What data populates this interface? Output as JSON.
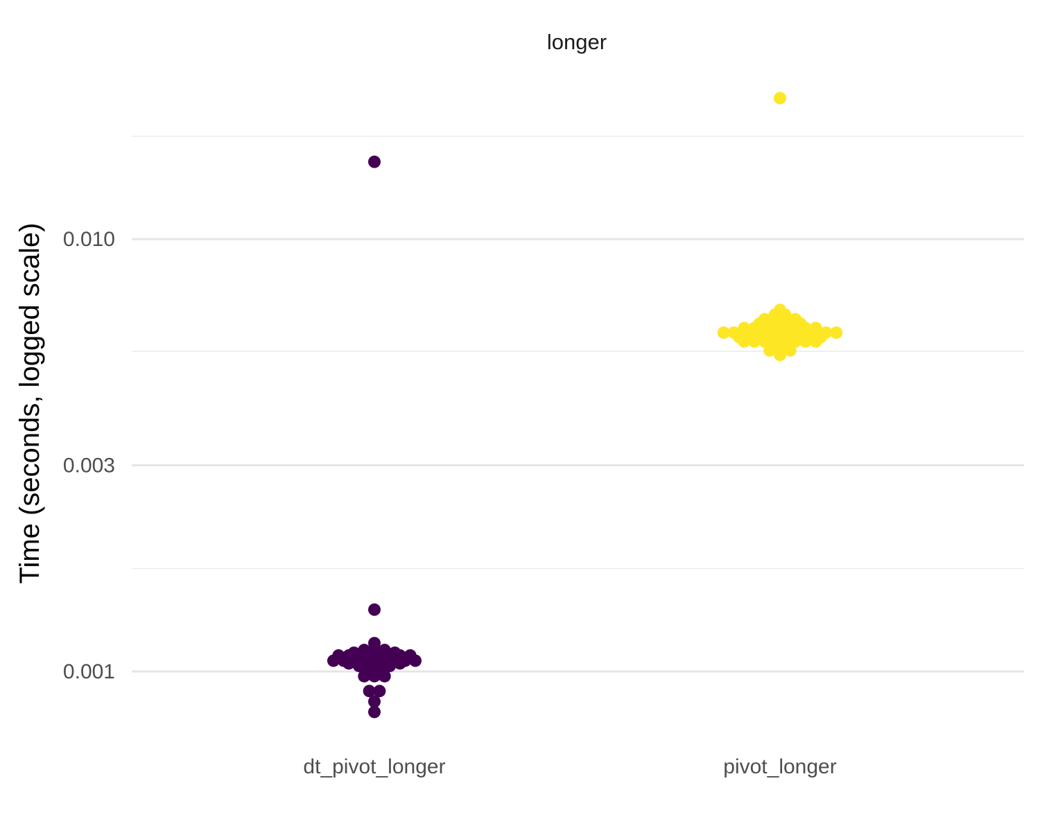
{
  "chart_data": {
    "type": "scatter",
    "subtype": "beeswarm",
    "facet_title": "longer",
    "xlabel": "",
    "ylabel": "Time (seconds, logged scale)",
    "y_scale": "log10",
    "ylim": [
      0.00072,
      0.024
    ],
    "y_ticks": [
      {
        "value": 0.001,
        "label": "0.001"
      },
      {
        "value": 0.003,
        "label": "0.003"
      },
      {
        "value": 0.01,
        "label": "0.010"
      }
    ],
    "y_minor_ticks": [
      0.00173,
      0.0055,
      0.0173
    ],
    "categories": [
      "dt_pivot_longer",
      "pivot_longer"
    ],
    "grid": true,
    "legend": "none",
    "series": [
      {
        "category": "dt_pivot_longer",
        "color": "#440154",
        "values": [
          0.0151,
          0.00139,
          0.001163,
          0.001121,
          0.001121,
          0.001121,
          0.001105,
          0.001105,
          0.001105,
          0.001105,
          0.001105,
          0.001089,
          0.001089,
          0.001089,
          0.001089,
          0.001089,
          0.001089,
          0.001089,
          0.001089,
          0.001074,
          0.001074,
          0.001074,
          0.001074,
          0.001074,
          0.001074,
          0.001074,
          0.001059,
          0.001059,
          0.001059,
          0.001059,
          0.001059,
          0.001059,
          0.001059,
          0.001059,
          0.001059,
          0.001044,
          0.001044,
          0.001044,
          0.001044,
          0.001044,
          0.001044,
          0.00103,
          0.00103,
          0.00103,
          0.00103,
          0.001016,
          0.001016,
          0.001016,
          0.001002,
          0.001002,
          0.000988,
          0.000988,
          0.000975,
          0.000975,
          0.000975,
          0.000901,
          0.000901,
          0.000852,
          0.000806
        ]
      },
      {
        "category": "pivot_longer",
        "color": "#FDE725",
        "values": [
          0.0212,
          0.00686,
          0.00669,
          0.00669,
          0.00653,
          0.00653,
          0.00653,
          0.00653,
          0.00638,
          0.00638,
          0.00638,
          0.00638,
          0.00638,
          0.00623,
          0.00623,
          0.00623,
          0.00623,
          0.00623,
          0.00623,
          0.00623,
          0.00623,
          0.00608,
          0.00608,
          0.00608,
          0.00608,
          0.00608,
          0.00608,
          0.00608,
          0.00608,
          0.00608,
          0.00608,
          0.00608,
          0.00608,
          0.00594,
          0.00594,
          0.00594,
          0.00594,
          0.00594,
          0.00594,
          0.00594,
          0.00594,
          0.00594,
          0.0058,
          0.0058,
          0.0058,
          0.0058,
          0.0058,
          0.0058,
          0.0058,
          0.0058,
          0.00567,
          0.00567,
          0.00567,
          0.00553,
          0.00553,
          0.00553,
          0.0054
        ]
      }
    ]
  }
}
